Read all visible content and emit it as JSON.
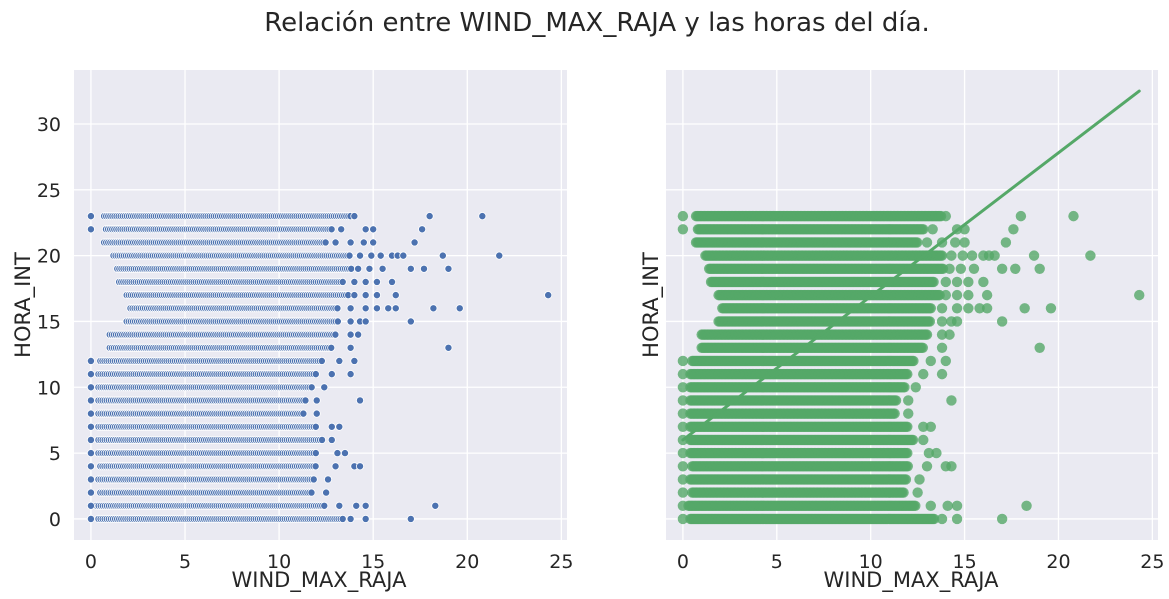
{
  "figure": {
    "title": "Relación entre WIND_MAX_RAJA y las horas del día."
  },
  "chart_data": [
    {
      "type": "scatter",
      "name": "scatterplot",
      "xlabel": "WIND_MAX_RAJA",
      "ylabel": "HORA_INT",
      "xlim": [
        -0.9,
        25.3
      ],
      "ylim": [
        -1.6,
        34.1
      ],
      "xticks": [
        0,
        5,
        10,
        15,
        20,
        25
      ],
      "yticks": [
        0,
        5,
        10,
        15,
        20,
        25,
        30
      ],
      "show_ytick_labels": true,
      "color": "#4c72b0",
      "grid": true,
      "rows": [
        {
          "y": 0,
          "dense_from": 0.4,
          "dense_to": 13.4,
          "sparse": [
            0,
            13.8,
            14.6,
            17.0
          ]
        },
        {
          "y": 1,
          "dense_from": 0.3,
          "dense_to": 12.4,
          "sparse": [
            0,
            13.2,
            14.1,
            14.6,
            18.3
          ]
        },
        {
          "y": 2,
          "dense_from": 0.5,
          "dense_to": 11.8,
          "sparse": [
            0,
            12.5
          ]
        },
        {
          "y": 3,
          "dense_from": 0.4,
          "dense_to": 11.9,
          "sparse": [
            0,
            12.6
          ]
        },
        {
          "y": 4,
          "dense_from": 0.5,
          "dense_to": 12.0,
          "sparse": [
            0,
            13.0,
            14.0,
            14.3
          ]
        },
        {
          "y": 5,
          "dense_from": 0.4,
          "dense_to": 12.0,
          "sparse": [
            0,
            13.1,
            13.5
          ]
        },
        {
          "y": 6,
          "dense_from": 0.4,
          "dense_to": 12.3,
          "sparse": [
            0,
            12.8
          ]
        },
        {
          "y": 7,
          "dense_from": 0.4,
          "dense_to": 12.0,
          "sparse": [
            0,
            12.8,
            13.2
          ]
        },
        {
          "y": 8,
          "dense_from": 0.4,
          "dense_to": 11.3,
          "sparse": [
            0,
            12.0
          ]
        },
        {
          "y": 9,
          "dense_from": 0.4,
          "dense_to": 11.4,
          "sparse": [
            0,
            12.0,
            14.3
          ]
        },
        {
          "y": 10,
          "dense_from": 0.4,
          "dense_to": 11.8,
          "sparse": [
            0,
            12.4
          ]
        },
        {
          "y": 11,
          "dense_from": 0.4,
          "dense_to": 12.0,
          "sparse": [
            0,
            12.8,
            13.8
          ]
        },
        {
          "y": 12,
          "dense_from": 0.5,
          "dense_to": 12.3,
          "sparse": [
            0,
            13.2,
            14.0
          ]
        },
        {
          "y": 13,
          "dense_from": 1.0,
          "dense_to": 12.8,
          "sparse": [
            13.8,
            19.0
          ]
        },
        {
          "y": 14,
          "dense_from": 1.0,
          "dense_to": 13.0,
          "sparse": [
            13.8,
            14.2
          ]
        },
        {
          "y": 15,
          "dense_from": 1.9,
          "dense_to": 13.2,
          "sparse": [
            13.8,
            14.3,
            14.6,
            17.0
          ]
        },
        {
          "y": 16,
          "dense_from": 2.1,
          "dense_to": 13.2,
          "sparse": [
            13.8,
            14.6,
            15.2,
            15.8,
            16.2,
            18.2,
            19.6
          ]
        },
        {
          "y": 17,
          "dense_from": 1.9,
          "dense_to": 13.7,
          "sparse": [
            14.0,
            14.6,
            15.2,
            16.2,
            24.3
          ]
        },
        {
          "y": 18,
          "dense_from": 1.5,
          "dense_to": 13.4,
          "sparse": [
            14.0,
            14.6,
            15.2,
            16.0
          ]
        },
        {
          "y": 19,
          "dense_from": 1.4,
          "dense_to": 13.9,
          "sparse": [
            14.2,
            14.8,
            15.5,
            17.0,
            17.7,
            19.0
          ]
        },
        {
          "y": 20,
          "dense_from": 1.2,
          "dense_to": 13.8,
          "sparse": [
            14.3,
            14.9,
            15.4,
            16.0,
            16.3,
            16.6,
            18.7,
            21.7
          ]
        },
        {
          "y": 21,
          "dense_from": 0.7,
          "dense_to": 12.5,
          "sparse": [
            13.0,
            13.8,
            14.5,
            15.0,
            17.2
          ]
        },
        {
          "y": 22,
          "dense_from": 0.8,
          "dense_to": 12.8,
          "sparse": [
            0,
            13.3,
            14.6,
            15.0,
            17.6
          ]
        },
        {
          "y": 23,
          "dense_from": 0.7,
          "dense_to": 13.8,
          "sparse": [
            0,
            14.0,
            18.0,
            20.8
          ]
        }
      ]
    },
    {
      "type": "scatter",
      "name": "regplot",
      "xlabel": "WIND_MAX_RAJA",
      "ylabel": "HORA_INT",
      "xlim": [
        -0.9,
        25.3
      ],
      "ylim": [
        -1.6,
        34.1
      ],
      "xticks": [
        0,
        5,
        10,
        15,
        20,
        25
      ],
      "yticks": [
        0,
        5,
        10,
        15,
        20,
        25,
        30
      ],
      "show_ytick_labels": false,
      "color": "#55a868",
      "grid": true,
      "regression_line": {
        "x": [
          0,
          24.3
        ],
        "y": [
          6.0,
          32.5
        ]
      }
    }
  ]
}
